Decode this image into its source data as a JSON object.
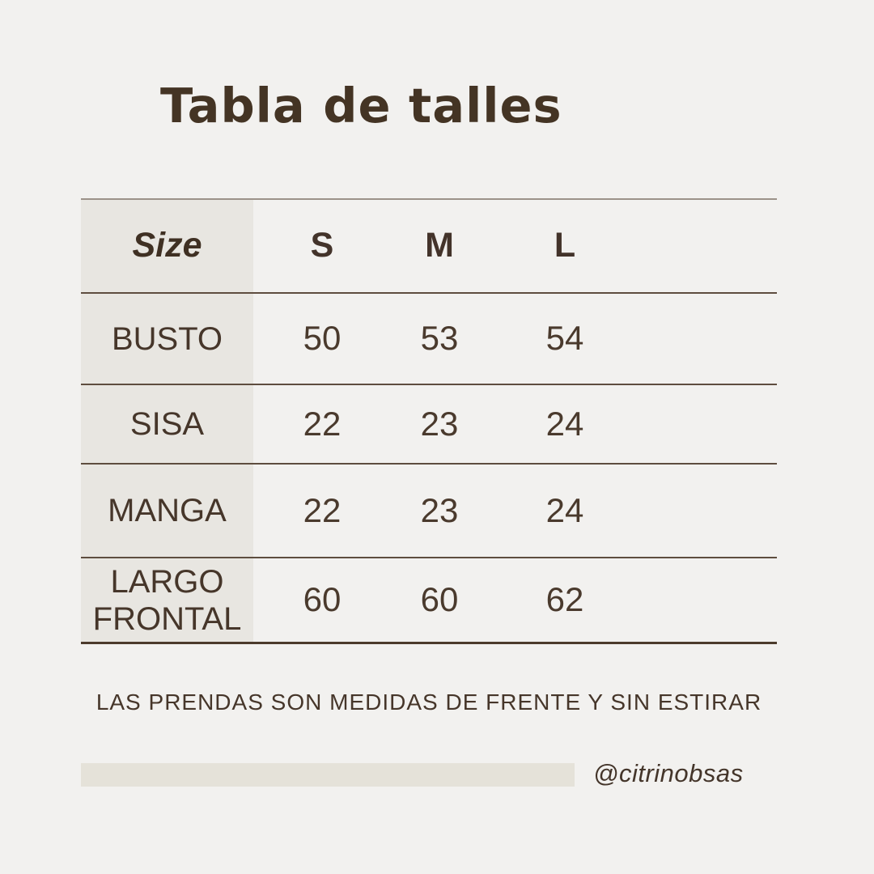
{
  "title": "Tabla de talles",
  "table": {
    "header": {
      "size_label": "Size",
      "columns": [
        "S",
        "M",
        "L"
      ]
    },
    "rows": [
      {
        "label": "BUSTO",
        "values": [
          "50",
          "53",
          "54"
        ]
      },
      {
        "label": "SISA",
        "values": [
          "22",
          "23",
          "24"
        ]
      },
      {
        "label": "MANGA",
        "values": [
          "22",
          "23",
          "24"
        ]
      },
      {
        "label": "LARGO FRONTAL",
        "values": [
          "60",
          "60",
          "62"
        ]
      }
    ]
  },
  "note": "LAS PRENDAS SON MEDIDAS DE FRENTE Y SIN ESTIRAR",
  "handle": "@citrinobsas",
  "colors": {
    "background": "#f2f1ef",
    "label_column_background": "#e8e6e1",
    "footer_bar": "#e5e2d9",
    "text": "#46362a",
    "top_rule": "#9c9289",
    "row_rule": "#5e4d3f",
    "bottom_rule": "#4c3b2c"
  }
}
